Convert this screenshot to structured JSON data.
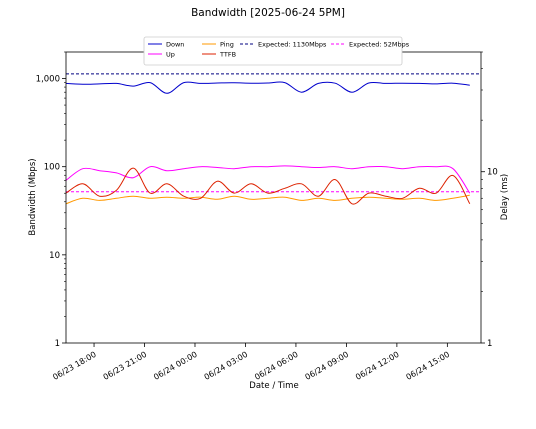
{
  "chart_data": {
    "type": "line",
    "title": "Bandwidth [2025-06-24 5PM]",
    "xlabel": "Date / Time",
    "ylabel": "Bandwidth (Mbps)",
    "y2label": "Delay (ms)",
    "yscale": "log",
    "ylim": [
      1,
      2000
    ],
    "y2scale": "log",
    "y2lim": [
      1,
      50
    ],
    "xlim": [
      "2025-06-23 16:20",
      "2025-06-24 17:00"
    ],
    "xticks": [
      "06/23 18:00",
      "06/23 21:00",
      "06/24 00:00",
      "06/24 03:00",
      "06/24 06:00",
      "06/24 09:00",
      "06/24 12:00",
      "06/24 15:00"
    ],
    "yticks": [
      "1",
      "10",
      "100",
      "1,000"
    ],
    "y2ticks": [
      "1",
      "10"
    ],
    "grid": false,
    "legend_position": "top-center",
    "legend": [
      "Down",
      "Up",
      "Ping",
      "TTFB",
      "Expected: 1130Mbps",
      "Expected: 52Mbps"
    ],
    "x_hours": [
      0,
      1,
      2,
      3,
      4,
      5,
      6,
      7,
      8,
      9,
      10,
      11,
      12,
      13,
      14,
      15,
      16,
      17,
      18,
      19,
      20,
      21,
      22,
      23,
      24
    ],
    "series": [
      {
        "name": "Down",
        "axis": "left",
        "color": "#0000cc",
        "values": [
          880,
          860,
          870,
          880,
          820,
          900,
          680,
          900,
          880,
          890,
          895,
          885,
          890,
          900,
          700,
          880,
          885,
          700,
          890,
          880,
          885,
          880,
          870,
          885,
          840
        ]
      },
      {
        "name": "Up",
        "axis": "left",
        "color": "#ff00ff",
        "values": [
          70,
          95,
          90,
          85,
          75,
          100,
          90,
          95,
          100,
          98,
          95,
          100,
          100,
          102,
          100,
          98,
          100,
          95,
          100,
          100,
          95,
          100,
          100,
          95,
          50
        ]
      },
      {
        "name": "Ping",
        "axis": "right",
        "color": "#ff9900",
        "values": [
          6.5,
          7,
          6.8,
          7,
          7.2,
          7,
          7.1,
          7,
          7.1,
          6.9,
          7.2,
          6.9,
          7,
          7.1,
          6.8,
          7,
          6.8,
          7,
          7.1,
          7,
          6.9,
          7,
          6.8,
          7,
          7.3
        ]
      },
      {
        "name": "TTFB",
        "axis": "right",
        "color": "#dd2200",
        "values": [
          7.5,
          8.5,
          7.2,
          7.8,
          10.5,
          7.5,
          8.5,
          7.2,
          7,
          8.8,
          7.5,
          8.5,
          7.5,
          8,
          8.5,
          7.2,
          9,
          6.5,
          7.5,
          7.2,
          7,
          8,
          7.5,
          9.5,
          6.5
        ]
      }
    ],
    "references": [
      {
        "name": "Expected: 1130Mbps",
        "value": 1130,
        "axis": "left",
        "color": "#000080",
        "style": "dashed"
      },
      {
        "name": "Expected: 52Mbps",
        "value": 52,
        "axis": "left",
        "color": "#ff00ff",
        "style": "dashed"
      }
    ]
  }
}
